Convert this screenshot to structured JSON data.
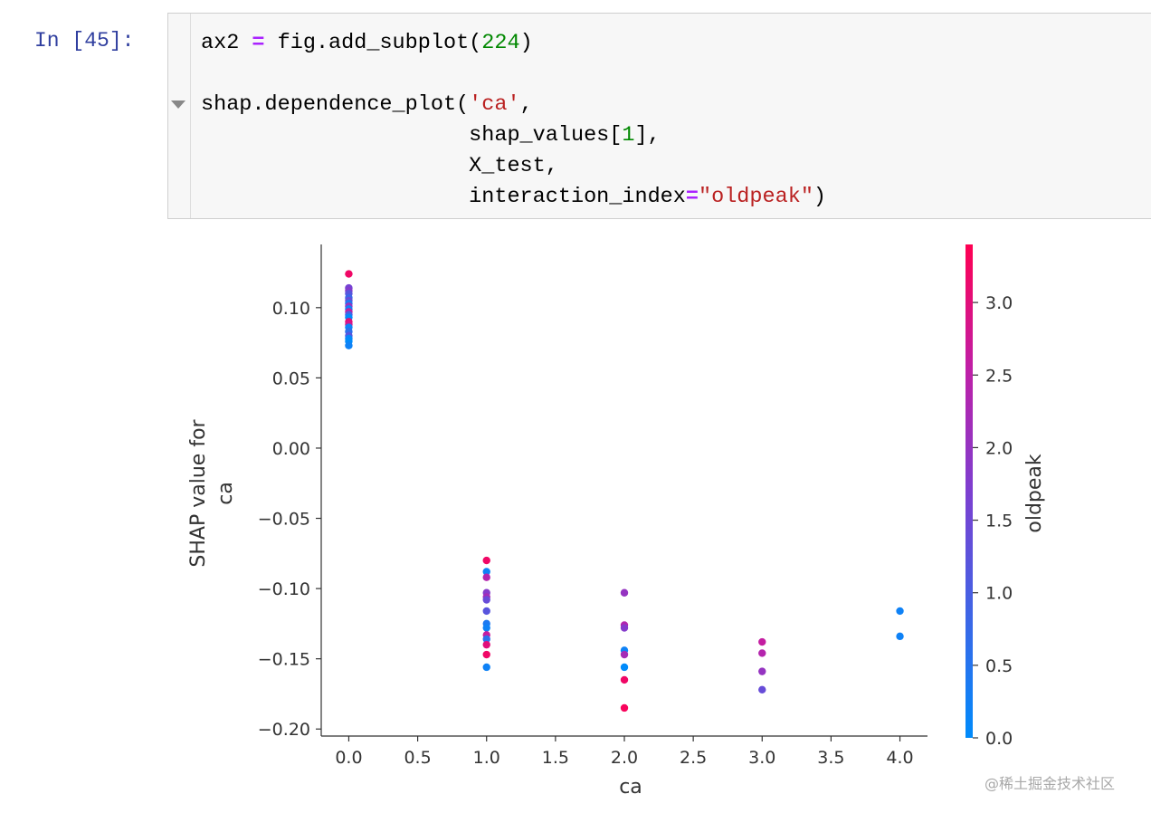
{
  "cell": {
    "prompt": "In [45]:",
    "code": {
      "l1_a": "ax2 ",
      "l1_op": "=",
      "l1_b": " fig.add_subplot(",
      "l1_num": "224",
      "l1_c": ")",
      "l2_a": "shap.dependence_plot(",
      "l2_str": "'ca'",
      "l2_b": ",",
      "l3_a": "                     shap_values[",
      "l3_num": "1",
      "l3_b": "],",
      "l4_a": "                     X_test,",
      "l5_a": "                     interaction_index",
      "l5_op": "=",
      "l5_str": "\"oldpeak\"",
      "l5_b": ")"
    }
  },
  "watermark": "@稀土掘金技术社区",
  "chart_data": {
    "type": "scatter",
    "xlabel": "ca",
    "ylabel": "SHAP value for\nca",
    "colorbar_label": "oldpeak",
    "xlim": [
      -0.2,
      4.2
    ],
    "ylim": [
      -0.205,
      0.145
    ],
    "xticks": [
      "0.0",
      "0.5",
      "1.0",
      "1.5",
      "2.0",
      "2.5",
      "3.0",
      "3.5",
      "4.0"
    ],
    "yticks": [
      "0.10",
      "0.05",
      "0.00",
      "−0.05",
      "−0.10",
      "−0.15",
      "−0.20"
    ],
    "colorbar_ticks": [
      "0.0",
      "0.5",
      "1.0",
      "1.5",
      "2.0",
      "2.5",
      "3.0"
    ],
    "colorbar_range": [
      0,
      3.4
    ],
    "colors": {
      "low": "#008bfb",
      "high": "#ff0052"
    },
    "points": [
      {
        "x": 0,
        "y": 0.124,
        "c": 3.2
      },
      {
        "x": 0,
        "y": 0.114,
        "c": 1.6
      },
      {
        "x": 0,
        "y": 0.112,
        "c": 1.8
      },
      {
        "x": 0,
        "y": 0.11,
        "c": 1.2
      },
      {
        "x": 0,
        "y": 0.107,
        "c": 0.8
      },
      {
        "x": 0,
        "y": 0.105,
        "c": 1.4
      },
      {
        "x": 0,
        "y": 0.103,
        "c": 0.4
      },
      {
        "x": 0,
        "y": 0.101,
        "c": 2.0
      },
      {
        "x": 0,
        "y": 0.099,
        "c": 0.2
      },
      {
        "x": 0,
        "y": 0.097,
        "c": 2.6
      },
      {
        "x": 0,
        "y": 0.095,
        "c": 1.0
      },
      {
        "x": 0,
        "y": 0.093,
        "c": 0.0
      },
      {
        "x": 0,
        "y": 0.09,
        "c": 3.0
      },
      {
        "x": 0,
        "y": 0.088,
        "c": 2.8
      },
      {
        "x": 0,
        "y": 0.086,
        "c": 0.2
      },
      {
        "x": 0,
        "y": 0.083,
        "c": 0.6
      },
      {
        "x": 0,
        "y": 0.08,
        "c": 1.2
      },
      {
        "x": 0,
        "y": 0.078,
        "c": 0.1
      },
      {
        "x": 0,
        "y": 0.076,
        "c": 0.0
      },
      {
        "x": 0,
        "y": 0.073,
        "c": 0.2
      },
      {
        "x": 1,
        "y": -0.08,
        "c": 3.2
      },
      {
        "x": 1,
        "y": -0.088,
        "c": 0.2
      },
      {
        "x": 1,
        "y": -0.092,
        "c": 2.4
      },
      {
        "x": 1,
        "y": -0.103,
        "c": 1.8
      },
      {
        "x": 1,
        "y": -0.106,
        "c": 2.2
      },
      {
        "x": 1,
        "y": -0.108,
        "c": 1.4
      },
      {
        "x": 1,
        "y": -0.116,
        "c": 1.2
      },
      {
        "x": 1,
        "y": -0.125,
        "c": 0.4
      },
      {
        "x": 1,
        "y": -0.128,
        "c": 0.2
      },
      {
        "x": 1,
        "y": -0.133,
        "c": 2.6
      },
      {
        "x": 1,
        "y": -0.136,
        "c": 0.6
      },
      {
        "x": 1,
        "y": -0.14,
        "c": 3.0
      },
      {
        "x": 1,
        "y": -0.147,
        "c": 3.2
      },
      {
        "x": 1,
        "y": -0.156,
        "c": 0.2
      },
      {
        "x": 2,
        "y": -0.103,
        "c": 2.0
      },
      {
        "x": 2,
        "y": -0.126,
        "c": 2.4
      },
      {
        "x": 2,
        "y": -0.128,
        "c": 1.8
      },
      {
        "x": 2,
        "y": -0.144,
        "c": 0.2
      },
      {
        "x": 2,
        "y": -0.147,
        "c": 2.2
      },
      {
        "x": 2,
        "y": -0.156,
        "c": 0.0
      },
      {
        "x": 2,
        "y": -0.165,
        "c": 3.2
      },
      {
        "x": 2,
        "y": -0.185,
        "c": 3.3
      },
      {
        "x": 3,
        "y": -0.138,
        "c": 2.6
      },
      {
        "x": 3,
        "y": -0.146,
        "c": 2.4
      },
      {
        "x": 3,
        "y": -0.159,
        "c": 2.0
      },
      {
        "x": 3,
        "y": -0.172,
        "c": 1.4
      },
      {
        "x": 4,
        "y": -0.116,
        "c": 0.2
      },
      {
        "x": 4,
        "y": -0.134,
        "c": 0.2
      }
    ]
  }
}
